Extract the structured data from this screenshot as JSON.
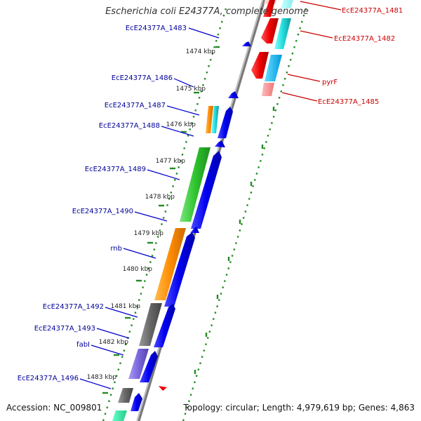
{
  "title": "Escherichia coli E24377A, complete genome",
  "footer": {
    "accession": "Accession: NC_009801",
    "summary": "Topology: circular; Length: 4,979,619 bp; Genes: 4,863"
  },
  "colors": {
    "backbone": "#7a7a7a",
    "tick": "#228b22",
    "forward_gene": "#0000ee",
    "label_left": "#000099",
    "label_right": "#cc0000"
  },
  "kbp_labels": [
    "1474 kbp",
    "1475 kbp",
    "1476 kbp",
    "1477 kbp",
    "1478 kbp",
    "1479 kbp",
    "1480 kbp",
    "1481 kbp",
    "1482 kbp",
    "1483 kbp"
  ],
  "left_labels": [
    "EcE24377A_1483",
    "EcE24377A_1486",
    "EcE24377A_1487",
    "EcE24377A_1488",
    "EcE24377A_1489",
    "EcE24377A_1490",
    "rnb",
    "EcE24377A_1492",
    "EcE24377A_1493",
    "fabI",
    "EcE24377A_1496"
  ],
  "right_labels": [
    "EcE24377A_1481",
    "EcE24377A_1482",
    "pyrF",
    "EcE24377A_1485"
  ]
}
